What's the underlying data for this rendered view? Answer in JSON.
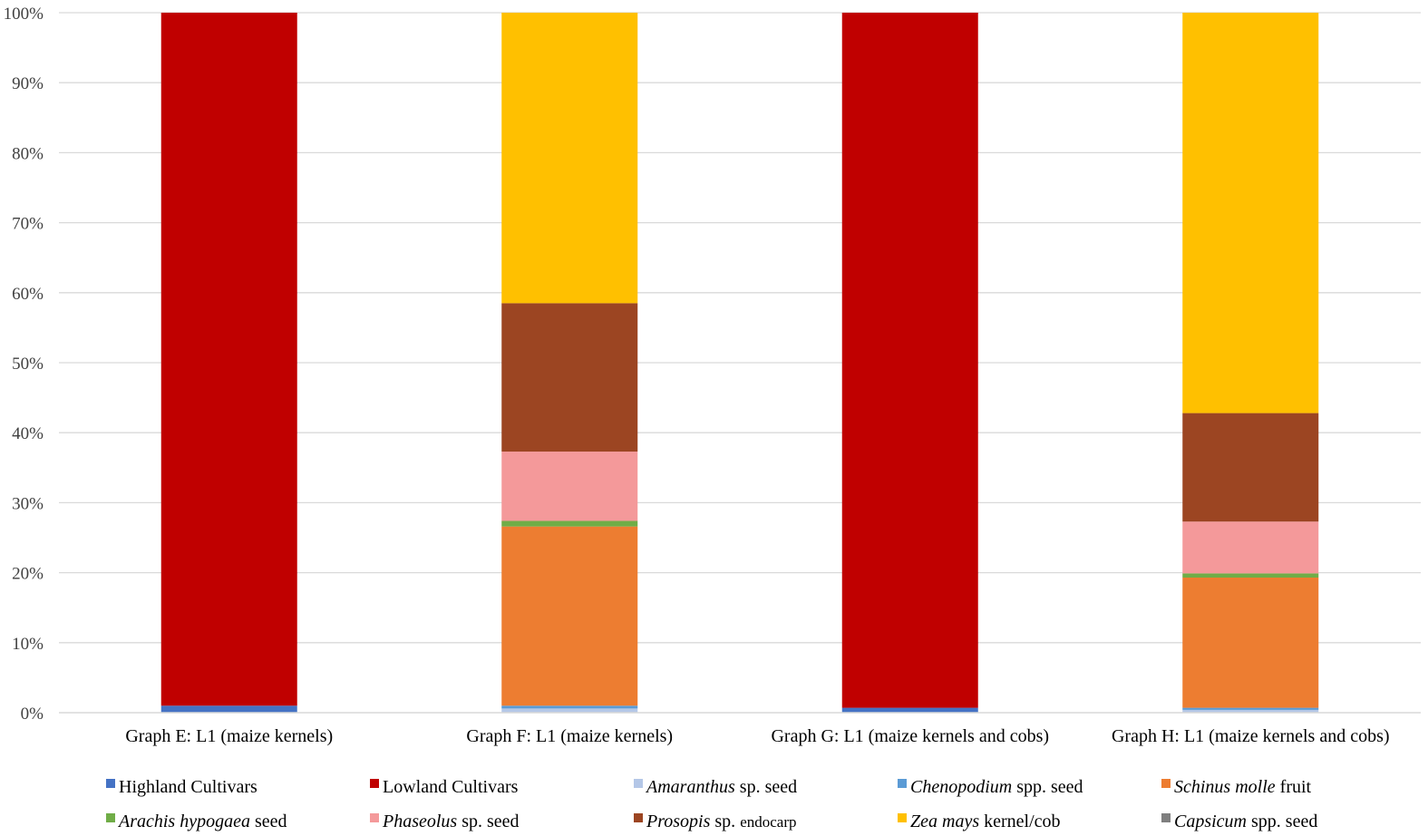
{
  "chart_data": {
    "type": "bar",
    "stacked": true,
    "percent": true,
    "categories": [
      "Graph E: L1 (maize kernels)",
      "Graph F: L1 (maize kernels)",
      "Graph G: L1 (maize kernels and cobs)",
      "Graph H: L1 (maize kernels and cobs)"
    ],
    "yticks": [
      "0%",
      "10%",
      "20%",
      "30%",
      "40%",
      "50%",
      "60%",
      "70%",
      "80%",
      "90%",
      "100%"
    ],
    "ylim": [
      0,
      100
    ],
    "grid": true,
    "legend_position": "bottom",
    "series": [
      {
        "name": "Highland Cultivars",
        "legend": [
          {
            "t": "Highland Cultivars"
          }
        ],
        "color": "#4472C4",
        "values": [
          1.0,
          0,
          0.7,
          0
        ]
      },
      {
        "name": "Lowland Cultivars",
        "legend": [
          {
            "t": "Lowland Cultivars"
          }
        ],
        "color": "#C00000",
        "values": [
          99.0,
          0,
          99.3,
          0
        ]
      },
      {
        "name": "Amaranthus sp. seed",
        "legend": [
          {
            "t": "Amaranthus",
            "s": "it"
          },
          {
            "t": " sp. seed"
          }
        ],
        "color": "#B4C7E7",
        "values": [
          0,
          0.6,
          0,
          0.4
        ]
      },
      {
        "name": "Chenopodium spp. seed",
        "legend": [
          {
            "t": "Chenopodium",
            "s": "it"
          },
          {
            "t": " spp. seed"
          }
        ],
        "color": "#5B9BD5",
        "values": [
          0,
          0.4,
          0,
          0.3
        ]
      },
      {
        "name": "Schinus molle fruit",
        "legend": [
          {
            "t": "Schinus molle",
            "s": "it"
          },
          {
            "t": " fruit"
          }
        ],
        "color": "#ED7D31",
        "values": [
          0,
          25.6,
          0,
          18.6
        ]
      },
      {
        "name": "Arachis hypogaea seed",
        "legend": [
          {
            "t": "Arachis hypogaea",
            "s": "it"
          },
          {
            "t": " seed"
          }
        ],
        "color": "#70AD47",
        "values": [
          0,
          0.8,
          0,
          0.6
        ]
      },
      {
        "name": "Phaseolus sp. seed",
        "legend": [
          {
            "t": "Phaseolus",
            "s": "it"
          },
          {
            "t": " sp. seed"
          }
        ],
        "color": "#F4999A",
        "values": [
          0,
          9.9,
          0,
          7.4
        ]
      },
      {
        "name": "Prosopis sp. endocarp",
        "legend": [
          {
            "t": "Prosopis",
            "s": "it"
          },
          {
            "t": " sp. "
          },
          {
            "t": "endocarp",
            "s": "sm"
          }
        ],
        "color": "#9C4522",
        "values": [
          0,
          21.2,
          0,
          15.5
        ]
      },
      {
        "name": "Zea mays kernel/cob",
        "legend": [
          {
            "t": "Zea mays",
            "s": "it"
          },
          {
            "t": " kernel/cob"
          }
        ],
        "color": "#FFC000",
        "values": [
          0,
          41.5,
          0,
          57.2
        ]
      },
      {
        "name": "Capsicum spp. seed",
        "legend": [
          {
            "t": "Capsicum",
            "s": "it"
          },
          {
            "t": " spp. seed"
          }
        ],
        "color": "#7F7F7F",
        "values": [
          0,
          0,
          0,
          0
        ]
      }
    ]
  }
}
